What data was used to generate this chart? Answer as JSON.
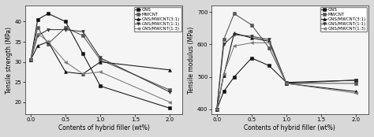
{
  "x": [
    0.0,
    0.1,
    0.25,
    0.5,
    0.75,
    1.0,
    2.0
  ],
  "left_chart": {
    "ylabel": "Tensile strength (MPa)",
    "xlabel": "Contents of hybrid filler (wt%)",
    "ylim": [
      17,
      44
    ],
    "yticks": [
      20,
      25,
      30,
      35,
      40
    ],
    "series": [
      {
        "label": "GNS",
        "marker": "s",
        "color": "#111111",
        "linestyle": "-",
        "values": [
          30.5,
          40.5,
          42.0,
          40.0,
          32.0,
          24.0,
          18.5
        ]
      },
      {
        "label": "MWCNT",
        "marker": "s",
        "color": "#555555",
        "linestyle": "-",
        "values": [
          30.5,
          38.5,
          34.5,
          38.5,
          36.5,
          30.5,
          23.0
        ]
      },
      {
        "label": "GNS/MWCNT(3:1)",
        "marker": "^",
        "color": "#111111",
        "linestyle": "-",
        "values": [
          30.5,
          34.0,
          35.0,
          27.5,
          27.0,
          30.0,
          28.0
        ]
      },
      {
        "label": "GNS/MWCNT(1:1)",
        "marker": "v",
        "color": "#333333",
        "linestyle": "-",
        "values": [
          30.5,
          36.5,
          38.0,
          38.0,
          37.5,
          31.0,
          22.5
        ]
      },
      {
        "label": "GNS/MWCNT(1:3)",
        "marker": "<",
        "color": "#777777",
        "linestyle": "-",
        "values": [
          30.5,
          37.0,
          35.0,
          30.0,
          27.0,
          27.5,
          20.0
        ]
      }
    ]
  },
  "right_chart": {
    "ylabel": "Tensile modulus (MPa)",
    "xlabel": "Contents of hybrid filler (wt%)",
    "ylim": [
      385,
      720
    ],
    "yticks": [
      400,
      500,
      600,
      700
    ],
    "series": [
      {
        "label": "GNS",
        "marker": "s",
        "color": "#111111",
        "linestyle": "-",
        "values": [
          400,
          455,
          500,
          558,
          535,
          483,
          490
        ]
      },
      {
        "label": "MWCNT",
        "marker": "s",
        "color": "#555555",
        "linestyle": "-",
        "values": [
          400,
          615,
          695,
          660,
          590,
          480,
          480
        ]
      },
      {
        "label": "GNS/MWCNT(3:1)",
        "marker": "^",
        "color": "#111111",
        "linestyle": "-",
        "values": [
          400,
          505,
          635,
          620,
          610,
          480,
          455
        ]
      },
      {
        "label": "GNS/MWCNT(1:1)",
        "marker": "v",
        "color": "#333333",
        "linestyle": "-",
        "values": [
          400,
          600,
          630,
          625,
          615,
          480,
          490
        ]
      },
      {
        "label": "GNS/MWCNT(1:3)",
        "marker": "<",
        "color": "#777777",
        "linestyle": "-",
        "values": [
          400,
          510,
          595,
          605,
          605,
          480,
          450
        ]
      }
    ]
  },
  "xticks": [
    0.0,
    0.5,
    1.0,
    1.5,
    2.0
  ],
  "xticklabels": [
    "0.0",
    "0.5",
    "1.0",
    "1.5",
    "2.0"
  ],
  "xlim": [
    -0.08,
    2.18
  ],
  "figure_bg": "#d8d8d8",
  "axes_bg": "#f5f5f5",
  "legend_fontsize": 4.0,
  "tick_labelsize": 5.0,
  "axis_labelsize": 5.5,
  "linewidth": 0.75,
  "markersize": 2.8
}
